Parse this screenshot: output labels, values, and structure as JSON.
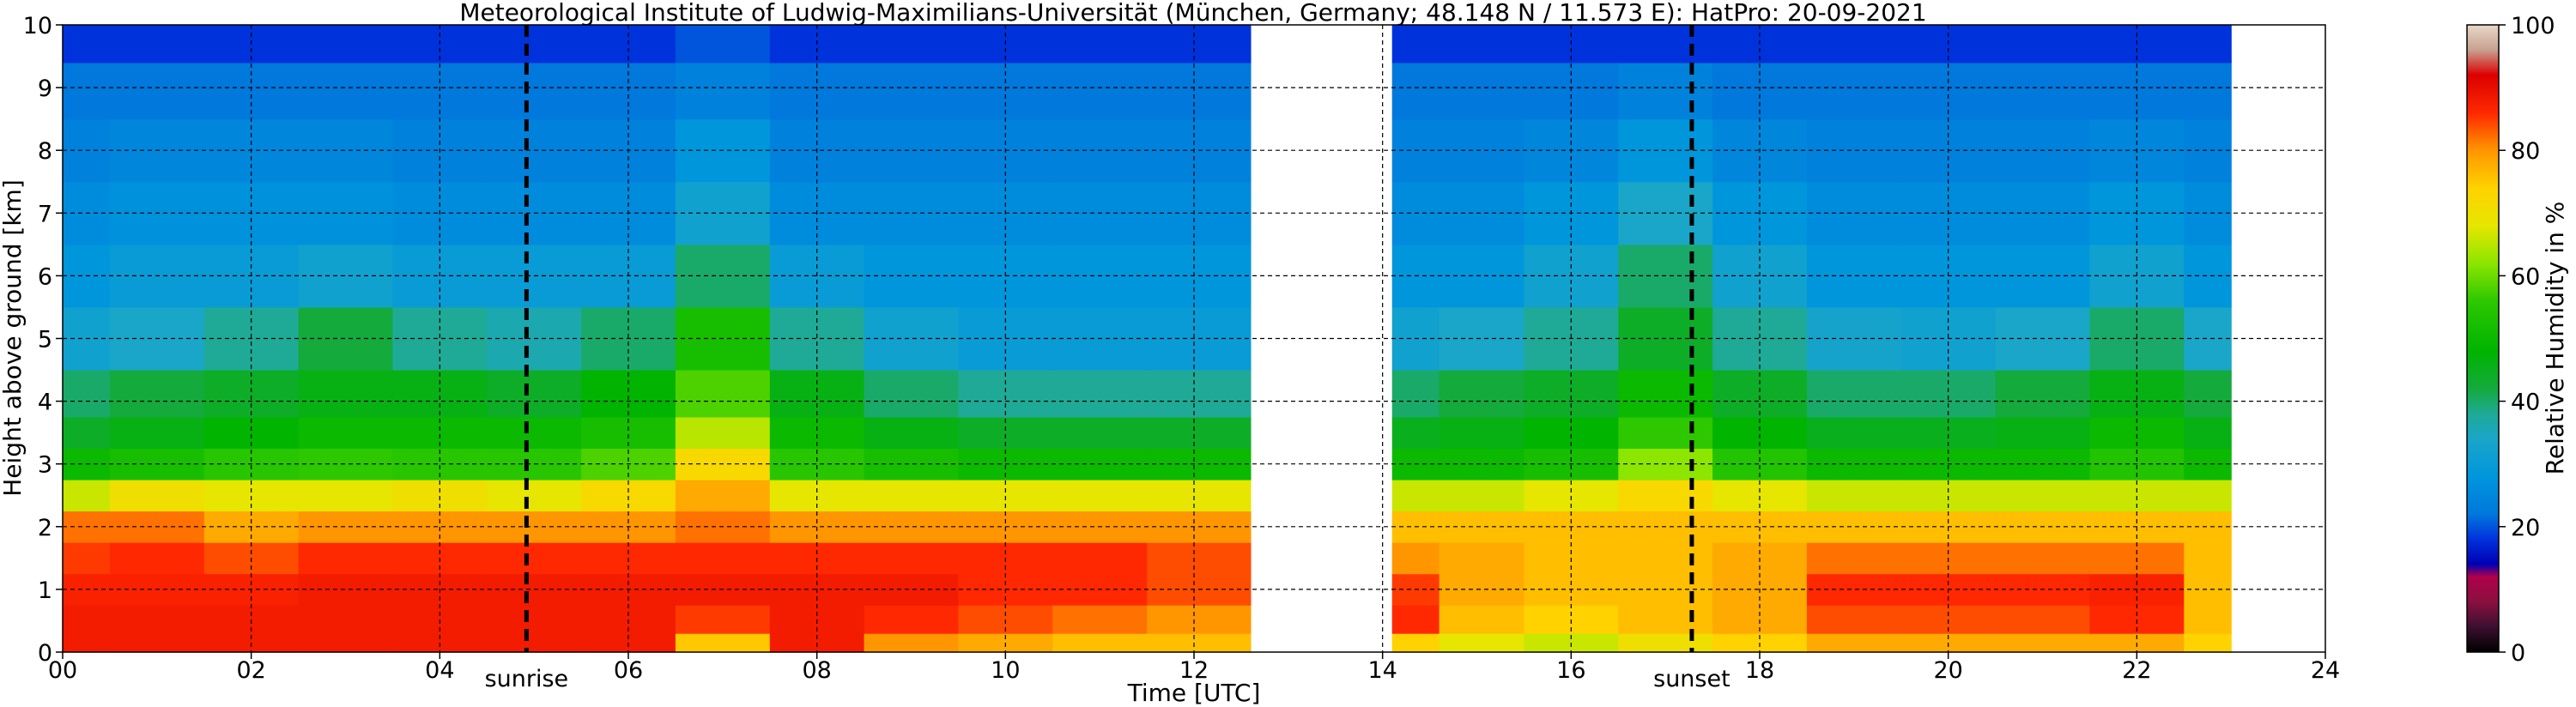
{
  "chart_data": {
    "type": "heatmap",
    "title": "Meteorological Institute of Ludwig-Maximilians-Universität (München, Germany; 48.148 N / 11.573 E):    HatPro: 20-09-2021",
    "xlabel": "Time [UTC]",
    "ylabel": "Height above ground [km]",
    "x_unit": "hour UTC",
    "y_unit": "km",
    "xlim": [
      0,
      24
    ],
    "ylim": [
      0,
      10
    ],
    "x_ticks": [
      0,
      2,
      4,
      6,
      8,
      10,
      12,
      14,
      16,
      18,
      20,
      22,
      24
    ],
    "x_tick_labels": [
      "00",
      "02",
      "04",
      "06",
      "08",
      "10",
      "12",
      "14",
      "16",
      "18",
      "20",
      "22",
      "24"
    ],
    "y_ticks": [
      0,
      1,
      2,
      3,
      4,
      5,
      6,
      7,
      8,
      9,
      10
    ],
    "y_tick_labels": [
      "0",
      "1",
      "2",
      "3",
      "4",
      "5",
      "6",
      "7",
      "8",
      "9",
      "10"
    ],
    "grid": true,
    "colorbar": {
      "label": "Relative Humidity in %",
      "range": [
        0,
        100
      ],
      "ticks": [
        0,
        20,
        40,
        60,
        80,
        100
      ],
      "tick_labels": [
        "0",
        "20",
        "40",
        "60",
        "80",
        "100"
      ]
    },
    "markers": [
      {
        "label": "sunrise",
        "x": 4.92
      },
      {
        "label": "sunset",
        "x": 17.28
      }
    ],
    "data_gaps": [
      [
        12.6,
        14.1
      ],
      [
        23.0,
        24.0
      ]
    ],
    "heights_km": [
      0.1,
      0.5,
      1.0,
      1.5,
      2.0,
      2.5,
      3.0,
      3.5,
      4.0,
      5.0,
      6.0,
      7.0,
      8.0,
      9.0,
      9.8
    ],
    "times_utc": [
      0,
      1,
      2,
      3,
      4,
      5,
      6,
      7,
      8,
      9,
      10,
      11,
      12,
      14.2,
      15,
      16,
      17,
      18,
      19,
      20,
      21,
      22,
      23
    ],
    "relative_humidity_percent": [
      [
        88,
        88,
        87,
        85,
        82,
        66,
        50,
        44,
        40,
        32,
        28,
        26,
        24,
        22,
        18
      ],
      [
        88,
        88,
        87,
        86,
        82,
        70,
        52,
        46,
        42,
        34,
        30,
        27,
        25,
        22,
        18
      ],
      [
        88,
        88,
        87,
        84,
        78,
        68,
        55,
        48,
        44,
        38,
        30,
        27,
        25,
        22,
        18
      ],
      [
        88,
        88,
        88,
        86,
        80,
        68,
        56,
        50,
        46,
        42,
        32,
        27,
        25,
        22,
        18
      ],
      [
        88,
        88,
        88,
        86,
        80,
        70,
        55,
        50,
        46,
        38,
        30,
        26,
        24,
        22,
        18
      ],
      [
        88,
        88,
        88,
        86,
        80,
        68,
        55,
        50,
        44,
        36,
        30,
        26,
        24,
        22,
        18
      ],
      [
        88,
        88,
        88,
        86,
        80,
        72,
        58,
        52,
        48,
        40,
        30,
        26,
        24,
        22,
        18
      ],
      [
        75,
        85,
        88,
        86,
        82,
        78,
        72,
        65,
        58,
        52,
        40,
        32,
        28,
        24,
        20
      ],
      [
        88,
        88,
        88,
        86,
        80,
        68,
        55,
        50,
        46,
        38,
        30,
        26,
        24,
        22,
        18
      ],
      [
        80,
        86,
        88,
        86,
        80,
        68,
        52,
        46,
        40,
        32,
        28,
        26,
        24,
        22,
        18
      ],
      [
        78,
        84,
        86,
        86,
        80,
        68,
        50,
        44,
        38,
        30,
        28,
        26,
        24,
        22,
        18
      ],
      [
        76,
        82,
        86,
        86,
        80,
        68,
        50,
        44,
        38,
        30,
        28,
        26,
        24,
        22,
        18
      ],
      [
        76,
        80,
        84,
        84,
        80,
        68,
        50,
        44,
        38,
        30,
        28,
        26,
        24,
        22,
        18
      ],
      [
        74,
        86,
        85,
        80,
        76,
        66,
        50,
        45,
        40,
        32,
        28,
        26,
        24,
        22,
        18
      ],
      [
        68,
        76,
        78,
        78,
        76,
        66,
        50,
        46,
        42,
        34,
        28,
        26,
        24,
        22,
        18
      ],
      [
        66,
        74,
        76,
        76,
        76,
        68,
        52,
        48,
        44,
        38,
        32,
        28,
        25,
        22,
        18
      ],
      [
        70,
        76,
        76,
        76,
        76,
        72,
        62,
        56,
        50,
        44,
        40,
        34,
        28,
        24,
        18
      ],
      [
        74,
        78,
        78,
        78,
        76,
        68,
        54,
        48,
        44,
        38,
        32,
        28,
        25,
        22,
        18
      ],
      [
        78,
        84,
        86,
        82,
        76,
        66,
        50,
        45,
        40,
        33,
        28,
        26,
        24,
        22,
        18
      ],
      [
        78,
        84,
        86,
        82,
        76,
        66,
        50,
        45,
        40,
        32,
        28,
        26,
        24,
        22,
        18
      ],
      [
        78,
        84,
        86,
        82,
        76,
        66,
        50,
        46,
        42,
        34,
        28,
        26,
        24,
        22,
        18
      ],
      [
        78,
        86,
        87,
        82,
        76,
        66,
        54,
        50,
        46,
        40,
        32,
        28,
        25,
        22,
        18
      ],
      [
        74,
        76,
        76,
        76,
        76,
        66,
        50,
        46,
        42,
        34,
        28,
        26,
        24,
        22,
        18
      ]
    ]
  }
}
